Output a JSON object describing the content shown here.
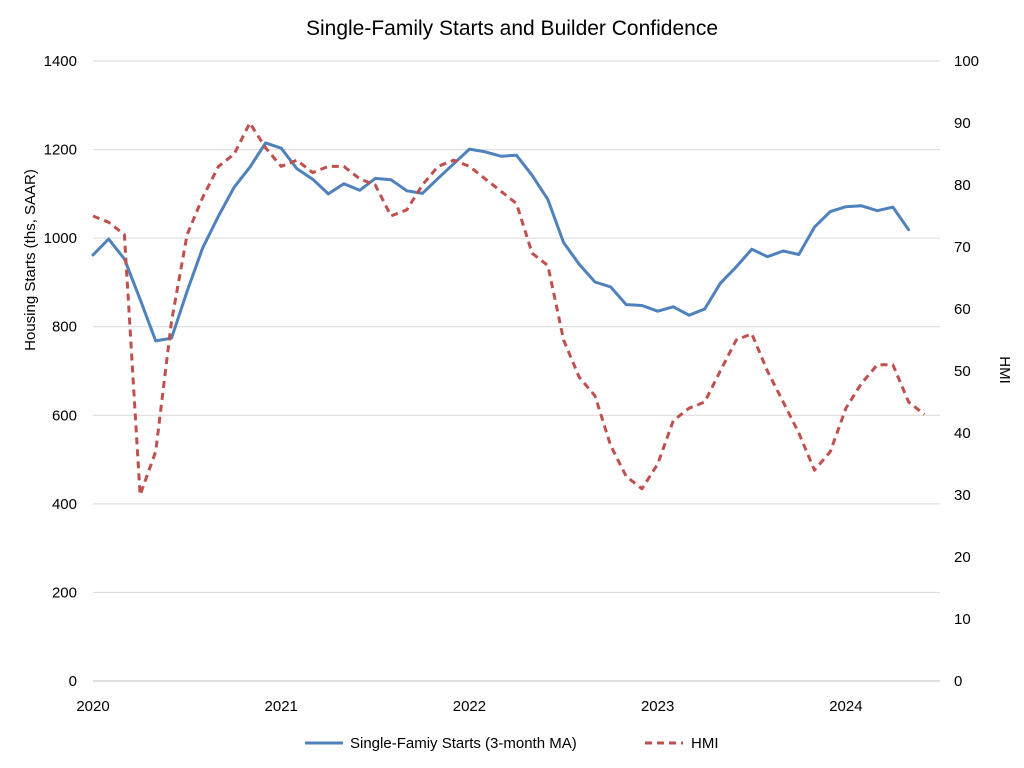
{
  "chart_data": {
    "type": "line",
    "title": "Single-Family Starts and Builder Confidence",
    "ylabel": "Housing Starts (ths, SAAR)",
    "y2label": "HMI",
    "x_tick_labels": [
      "2020",
      "2021",
      "2022",
      "2023",
      "2024"
    ],
    "x_range": [
      2020.0,
      2024.5
    ],
    "ylim": [
      0,
      1400
    ],
    "y_ticks": [
      0,
      200,
      400,
      600,
      800,
      1000,
      1200,
      1400
    ],
    "y2lim": [
      0,
      100
    ],
    "y2_ticks": [
      0,
      10,
      20,
      30,
      40,
      50,
      60,
      70,
      80,
      90,
      100
    ],
    "grid": true,
    "legend_position": "bottom",
    "series": [
      {
        "name": "Single-Famiy Starts (3-month MA)",
        "axis": "left",
        "color": "#4F81BD",
        "style": "solid",
        "x": [
          2020.0,
          2020.083,
          2020.167,
          2020.25,
          2020.333,
          2020.417,
          2020.5,
          2020.583,
          2020.667,
          2020.75,
          2020.833,
          2020.917,
          2021.0,
          2021.083,
          2021.167,
          2021.25,
          2021.333,
          2021.417,
          2021.5,
          2021.583,
          2021.667,
          2021.75,
          2021.833,
          2021.917,
          2022.0,
          2022.083,
          2022.167,
          2022.25,
          2022.333,
          2022.417,
          2022.5,
          2022.583,
          2022.667,
          2022.75,
          2022.833,
          2022.917,
          2023.0,
          2023.083,
          2023.167,
          2023.25,
          2023.333,
          2023.417,
          2023.5,
          2023.583,
          2023.667,
          2023.75,
          2023.833,
          2023.917,
          2024.0,
          2024.083,
          2024.167,
          2024.25,
          2024.333
        ],
        "values": [
          962,
          998,
          953,
          862,
          768,
          774,
          880,
          978,
          1050,
          1115,
          1160,
          1215,
          1203,
          1157,
          1133,
          1100,
          1123,
          1108,
          1135,
          1132,
          1107,
          1101,
          1135,
          1168,
          1201,
          1195,
          1185,
          1187,
          1142,
          1087,
          990,
          941,
          901,
          890,
          850,
          848,
          835,
          845,
          826,
          840,
          898,
          935,
          975,
          958,
          971,
          963,
          1025,
          1060,
          1071,
          1073,
          1062,
          1070,
          1019
        ]
      },
      {
        "name": "HMI",
        "axis": "right",
        "color": "#C0504D",
        "style": "dashed",
        "x": [
          2020.0,
          2020.083,
          2020.167,
          2020.25,
          2020.333,
          2020.417,
          2020.5,
          2020.583,
          2020.667,
          2020.75,
          2020.833,
          2020.917,
          2021.0,
          2021.083,
          2021.167,
          2021.25,
          2021.333,
          2021.417,
          2021.5,
          2021.583,
          2021.667,
          2021.75,
          2021.833,
          2021.917,
          2022.0,
          2022.083,
          2022.167,
          2022.25,
          2022.333,
          2022.417,
          2022.5,
          2022.583,
          2022.667,
          2022.75,
          2022.833,
          2022.917,
          2023.0,
          2023.083,
          2023.167,
          2023.25,
          2023.333,
          2023.417,
          2023.5,
          2023.583,
          2023.667,
          2023.75,
          2023.833,
          2023.917,
          2024.0,
          2024.083,
          2024.167,
          2024.25,
          2024.333,
          2024.417
        ],
        "values": [
          75,
          74,
          72,
          30,
          37,
          58,
          72,
          78,
          83,
          85,
          90,
          86,
          83,
          84,
          82,
          83,
          83,
          81,
          80,
          75,
          76,
          80,
          83,
          84,
          83,
          81,
          79,
          77,
          69,
          67,
          55,
          49,
          46,
          38,
          33,
          31,
          35,
          42,
          44,
          45,
          50,
          55,
          56,
          50,
          45,
          40,
          34,
          37,
          44,
          48,
          51,
          51,
          45,
          43
        ]
      }
    ]
  }
}
